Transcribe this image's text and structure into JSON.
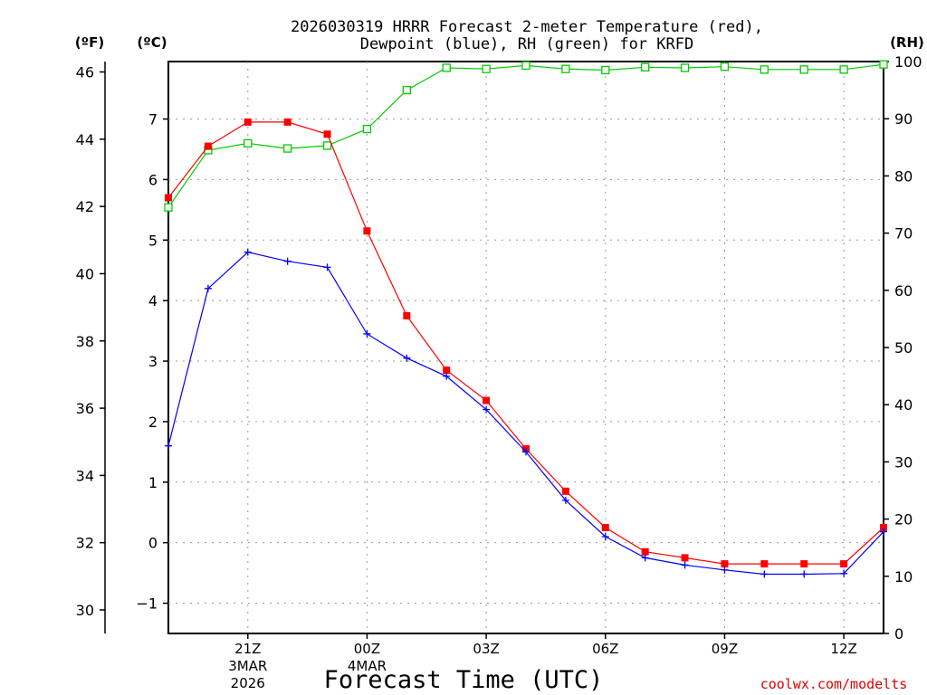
{
  "chart_data": {
    "type": "line",
    "title": "2026030319 HRRR Forecast 2-meter Temperature (red),",
    "subtitle": "Dewpoint (blue), RH (green) for KRFD",
    "xlabel": "Forecast Time (UTC)",
    "credit": "coolwx.com/modelts",
    "units": {
      "fahrenheit": "(ºF)",
      "celsius": "(ºC)",
      "rh": "(RH)"
    },
    "x": [
      "19Z",
      "20Z",
      "21Z",
      "22Z",
      "23Z",
      "00Z",
      "01Z",
      "02Z",
      "03Z",
      "04Z",
      "05Z",
      "06Z",
      "07Z",
      "08Z",
      "09Z",
      "10Z",
      "11Z",
      "12Z",
      "13Z"
    ],
    "x_ticks": [
      {
        "label": "21Z",
        "sub": [
          "3MAR",
          "2026"
        ]
      },
      {
        "label": "00Z",
        "sub": [
          "4MAR"
        ]
      },
      {
        "label": "03Z",
        "sub": []
      },
      {
        "label": "06Z",
        "sub": []
      },
      {
        "label": "09Z",
        "sub": []
      },
      {
        "label": "12Z",
        "sub": []
      }
    ],
    "x_tick_index": [
      2,
      5,
      8,
      11,
      14,
      17
    ],
    "celsius_axis": {
      "range": [
        -1.5,
        7.95
      ],
      "ticks": [
        -1,
        0,
        1,
        2,
        3,
        4,
        5,
        6,
        7
      ],
      "tick_labels": [
        "−1",
        "0",
        "1",
        "2",
        "3",
        "4",
        "5",
        "6",
        "7"
      ]
    },
    "fahrenheit_axis": {
      "range": [
        29.3,
        46.31
      ],
      "ticks": [
        30,
        32,
        34,
        36,
        38,
        40,
        42,
        44,
        46
      ],
      "tick_labels": [
        "30",
        "32",
        "34",
        "36",
        "38",
        "40",
        "42",
        "44",
        "46"
      ]
    },
    "rh_axis": {
      "range": [
        0,
        100
      ],
      "ticks": [
        0,
        10,
        20,
        30,
        40,
        50,
        60,
        70,
        80,
        90,
        100
      ],
      "tick_labels": [
        "0",
        "10",
        "20",
        "30",
        "40",
        "50",
        "60",
        "70",
        "80",
        "90",
        "100"
      ]
    },
    "grid": true,
    "series": [
      {
        "name": "Temperature",
        "units": "C",
        "color": "#ff0000",
        "marker": "filled-square",
        "values": [
          5.7,
          6.55,
          6.95,
          6.95,
          6.75,
          5.15,
          3.75,
          2.85,
          2.35,
          1.55,
          0.85,
          0.25,
          -0.15,
          -0.25,
          -0.35,
          -0.35,
          -0.35,
          -0.35,
          0.25
        ]
      },
      {
        "name": "Dewpoint",
        "units": "C",
        "color": "#0000ff",
        "marker": "plus",
        "values": [
          1.6,
          4.2,
          4.8,
          4.65,
          4.55,
          3.45,
          3.05,
          2.75,
          2.2,
          1.5,
          0.7,
          0.1,
          -0.25,
          -0.37,
          -0.45,
          -0.52,
          -0.52,
          -0.51,
          0.18
        ]
      },
      {
        "name": "RH",
        "units": "%",
        "color": "#00cc00",
        "marker": "open-square",
        "values": [
          74.5,
          84.5,
          85.7,
          84.8,
          85.3,
          88.2,
          95,
          98.9,
          98.7,
          99.3,
          98.7,
          98.5,
          99,
          98.9,
          99.1,
          98.6,
          98.6,
          98.6,
          99.5
        ]
      }
    ]
  }
}
